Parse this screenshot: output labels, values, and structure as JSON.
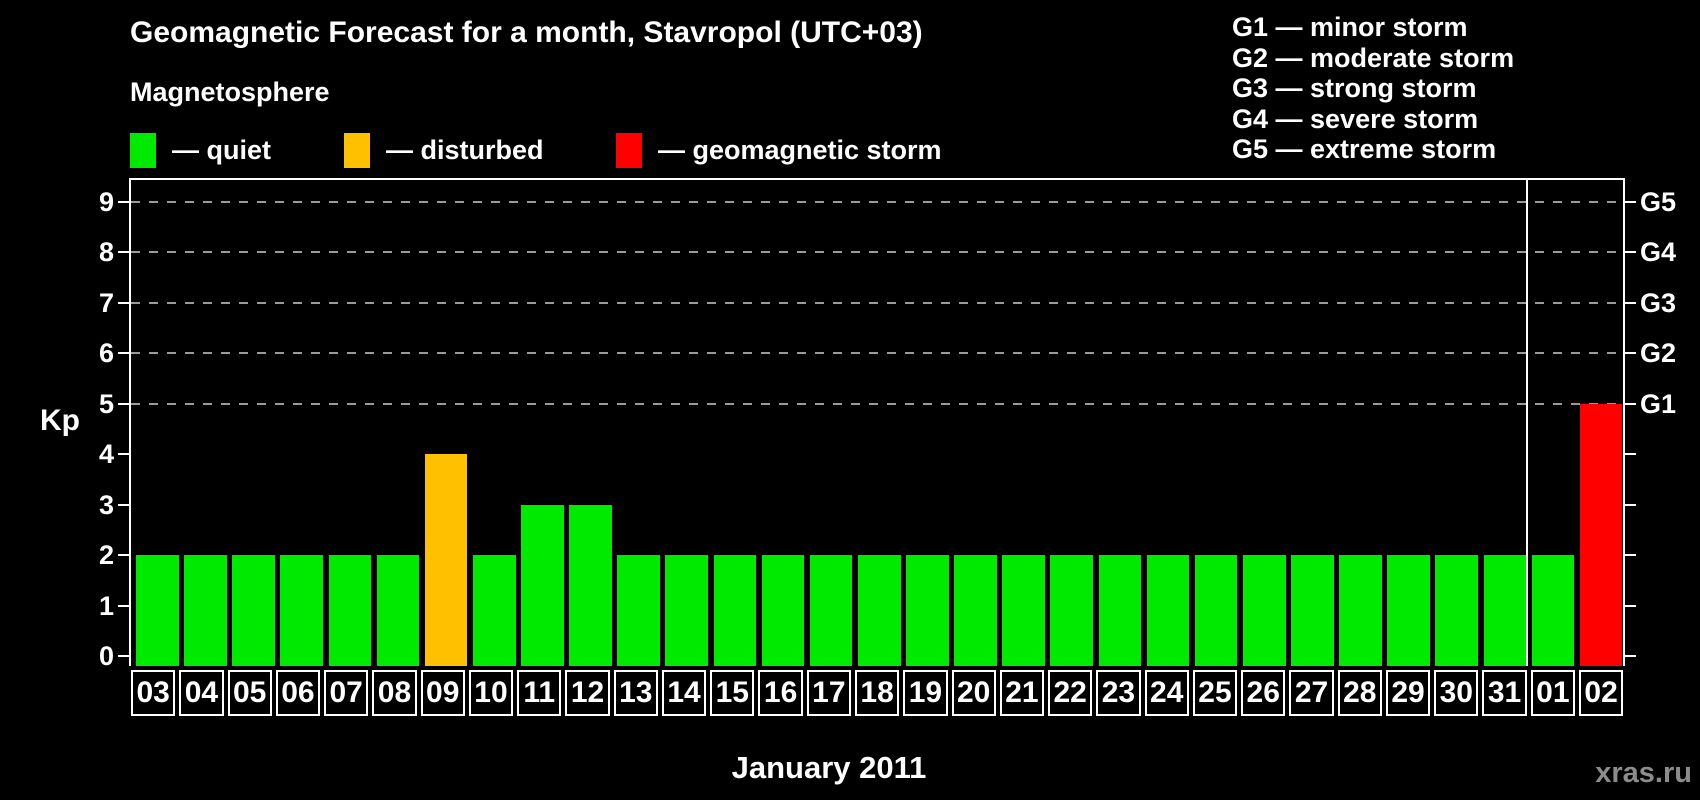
{
  "title": "Geomagnetic Forecast for a month, Stavropol (UTC+03)",
  "subtitle": "Magnetosphere",
  "status_legend": [
    {
      "name": "quiet",
      "label": "— quiet",
      "color": "#00EA00"
    },
    {
      "name": "disturbed",
      "label": "— disturbed",
      "color": "#FFC000"
    },
    {
      "name": "storm",
      "label": "— geomagnetic storm",
      "color": "#FF0000"
    }
  ],
  "storm_scale_legend": [
    "G1 — minor storm",
    "G2 — moderate storm",
    "G3 — strong storm",
    "G4 — severe storm",
    "G5 — extreme storm"
  ],
  "chart_data": {
    "type": "bar",
    "title": "Geomagnetic Forecast for a month, Stavropol (UTC+03)",
    "ylabel": "Kp",
    "xlabel": "January 2011",
    "ylim": [
      0,
      9
    ],
    "yticks": [
      0,
      1,
      2,
      3,
      4,
      5,
      6,
      7,
      8,
      9
    ],
    "grid_kp_levels": [
      5,
      6,
      7,
      8,
      9
    ],
    "right_axis": [
      {
        "kp": 9,
        "label": "G5"
      },
      {
        "kp": 8,
        "label": "G4"
      },
      {
        "kp": 7,
        "label": "G3"
      },
      {
        "kp": 6,
        "label": "G2"
      },
      {
        "kp": 5,
        "label": "G1"
      }
    ],
    "categories": [
      "03",
      "04",
      "05",
      "06",
      "07",
      "08",
      "09",
      "10",
      "11",
      "12",
      "13",
      "14",
      "15",
      "16",
      "17",
      "18",
      "19",
      "20",
      "21",
      "22",
      "23",
      "24",
      "25",
      "26",
      "27",
      "28",
      "29",
      "30",
      "31",
      "01",
      "02"
    ],
    "values": [
      2,
      2,
      2,
      2,
      2,
      2,
      4,
      2,
      3,
      3,
      2,
      2,
      2,
      2,
      2,
      2,
      2,
      2,
      2,
      2,
      2,
      2,
      2,
      2,
      2,
      2,
      2,
      2,
      2,
      2,
      5
    ],
    "statuses": [
      "quiet",
      "quiet",
      "quiet",
      "quiet",
      "quiet",
      "quiet",
      "disturbed",
      "quiet",
      "quiet",
      "quiet",
      "quiet",
      "quiet",
      "quiet",
      "quiet",
      "quiet",
      "quiet",
      "quiet",
      "quiet",
      "quiet",
      "quiet",
      "quiet",
      "quiet",
      "quiet",
      "quiet",
      "quiet",
      "quiet",
      "quiet",
      "quiet",
      "quiet",
      "quiet",
      "storm"
    ],
    "month_divider_after": "31",
    "grid": true,
    "legend_position": "top-left"
  },
  "month_label": "January 2011",
  "watermark": "xras.ru",
  "colors": {
    "quiet": "#00EA00",
    "disturbed": "#FFC000",
    "storm": "#FF0000",
    "grid": "#9A9A9A",
    "axis": "#FFFFFF",
    "background": "#000000",
    "watermark": "#8C8C8C"
  }
}
